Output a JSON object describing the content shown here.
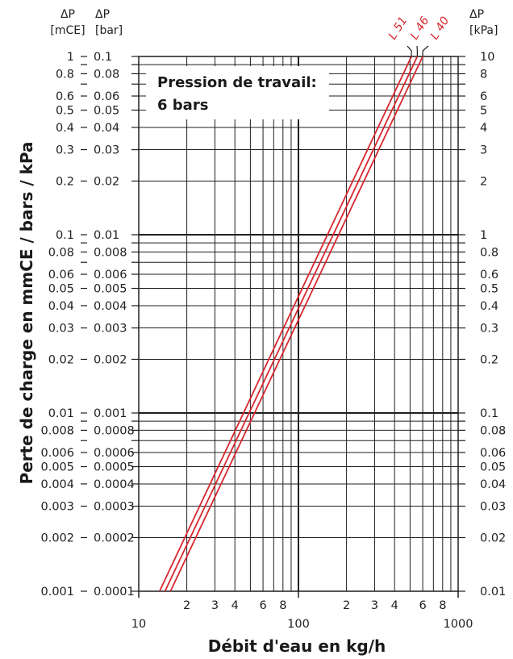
{
  "chart_data": {
    "type": "line",
    "scale": "log-log",
    "xlabel": "Débit d'eau en kg/h",
    "ylabel": "Perte de charge en mmCE / bars / kPa",
    "annotation": [
      "Pression de travail:",
      "6 bars"
    ],
    "xlim": [
      10,
      1000
    ],
    "ylim_mCE": [
      0.001,
      1
    ],
    "axes": {
      "left_outer": {
        "header": [
          "ΔP",
          "[mCE]"
        ],
        "ticks": [
          1,
          0.8,
          0.6,
          0.5,
          0.4,
          0.3,
          0.2,
          0.1,
          0.08,
          0.06,
          0.05,
          0.04,
          0.03,
          0.02,
          0.01,
          0.008,
          0.006,
          0.005,
          0.004,
          0.003,
          0.002,
          0.001
        ]
      },
      "left_inner": {
        "header": [
          "ΔP",
          "[bar]"
        ],
        "ticks": [
          0.1,
          0.08,
          0.06,
          0.05,
          0.04,
          0.03,
          0.02,
          0.01,
          0.008,
          0.006,
          0.005,
          0.004,
          0.003,
          0.002,
          0.001,
          0.0008,
          0.0006,
          0.0005,
          0.0004,
          0.0003,
          0.0002,
          0.0001
        ]
      },
      "right": {
        "header": [
          "ΔP",
          "[kPa]"
        ],
        "ticks": [
          10,
          8,
          6,
          5,
          4,
          3,
          2,
          1,
          0.8,
          0.6,
          0.5,
          0.4,
          0.3,
          0.2,
          0.1,
          0.08,
          0.06,
          0.05,
          0.04,
          0.03,
          0.02,
          0.01
        ]
      },
      "x": {
        "major_ticks": [
          "10",
          "100",
          "1000"
        ],
        "minor_ticks": [
          "2",
          "3",
          "4",
          "6",
          "8",
          "2",
          "3",
          "4",
          "6",
          "8"
        ]
      }
    },
    "series_color": "#d7262e",
    "series": [
      {
        "name": "L 51",
        "x": [
          13.5,
          510
        ],
        "y_mCE": [
          0.001,
          1
        ]
      },
      {
        "name": "L 46",
        "x": [
          14.6,
          555
        ],
        "y_mCE": [
          0.001,
          1
        ]
      },
      {
        "name": "L 40",
        "x": [
          15.8,
          600
        ],
        "y_mCE": [
          0.001,
          1
        ]
      }
    ]
  }
}
